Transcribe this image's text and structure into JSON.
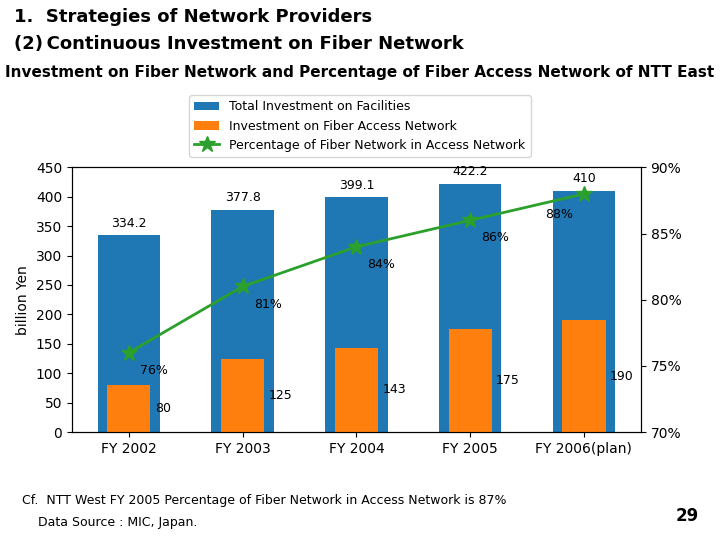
{
  "chart_data": {
    "type": "bar",
    "title": "Investment on Fiber Network and Percentage of Fiber Access Network of NTT East",
    "ylabel": "billion Yen",
    "annotations": [
      "1.  Strategies of Network Providers",
      "(2) Continuous Investment on Fiber Network",
      "Cf.  NTT West FY 2005 Percentage of Fiber Network in Access Network is 87%",
      "    Data Source : MIC, Japan.",
      "29"
    ],
    "categories": [
      "FY 2002",
      "FY 2003",
      "FY 2004",
      "FY 2005",
      "FY 2006(plan)"
    ],
    "series": [
      {
        "name": "Total Investment on Facilities",
        "type": "bar",
        "values": [
          334.2,
          377.8,
          399.1,
          422.2,
          410
        ]
      },
      {
        "name": "Investment on Fiber Access Network",
        "type": "bar",
        "values": [
          80,
          125,
          143,
          175,
          190
        ]
      },
      {
        "name": "Percentage of Fiber Network in Access Network",
        "type": "line",
        "marker": "star",
        "axis": "y2",
        "values": [
          76,
          81,
          84,
          86,
          88
        ],
        "value_labels": [
          "76%",
          "81%",
          "84%",
          "86%",
          "88%"
        ]
      }
    ],
    "ylim": [
      0,
      450
    ],
    "yticks": [
      0,
      50,
      100,
      150,
      200,
      250,
      300,
      350,
      400,
      450
    ],
    "y2lim": [
      70,
      90
    ],
    "y2ticks": [
      {
        "value": 70,
        "label": "70%"
      },
      {
        "value": 75,
        "label": "75%"
      },
      {
        "value": 80,
        "label": "80%"
      },
      {
        "value": 85,
        "label": "85%"
      },
      {
        "value": 90,
        "label": "90%"
      }
    ],
    "data_labels": true
  }
}
